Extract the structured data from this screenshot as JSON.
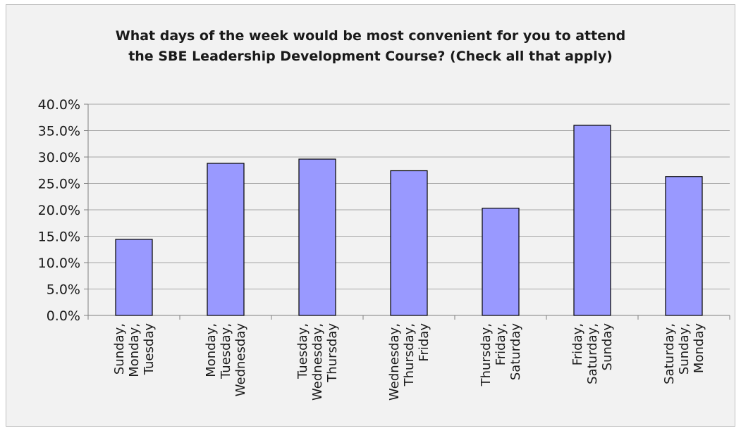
{
  "chart_data": {
    "type": "bar",
    "title_lines": [
      "What days of the week would be most convenient for you to attend",
      "the SBE Leadership Development Course? (Check all that apply)"
    ],
    "categories": [
      [
        "Sunday,",
        "Monday,",
        "Tuesday"
      ],
      [
        "Monday,",
        "Tuesday,",
        "Wednesday"
      ],
      [
        "Tuesday,",
        "Wednesday,",
        "Thursday"
      ],
      [
        "Wednesday,",
        "Thursday,",
        "Friday"
      ],
      [
        "Thursday,",
        "Friday,",
        "Saturday"
      ],
      [
        "Friday,",
        "Saturday,",
        "Sunday"
      ],
      [
        "Saturday,",
        "Sunday,",
        "Monday"
      ]
    ],
    "values": [
      14.4,
      28.8,
      29.6,
      27.4,
      20.3,
      36.0,
      26.3
    ],
    "ylim": [
      0,
      40
    ],
    "ytick_step": 5,
    "ytick_format": "percent_1dp",
    "grid": true,
    "legend": "none",
    "xlabel": "",
    "ylabel": "",
    "colors": {
      "bar_fill": "#9999ff",
      "bar_stroke": "#000000",
      "gridline": "#a6a6a6",
      "axis": "#808080",
      "background": "#f2f2f2"
    }
  }
}
